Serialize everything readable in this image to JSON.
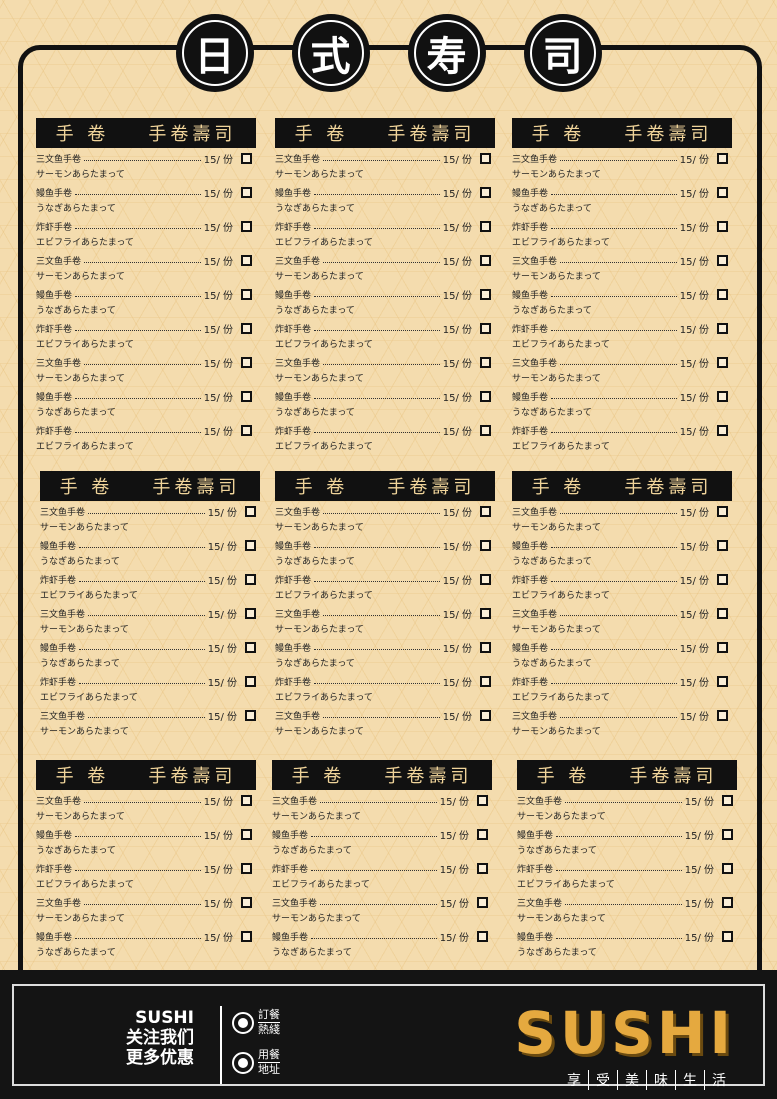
{
  "title_chars": [
    "日",
    "式",
    "寿",
    "司"
  ],
  "section_header": {
    "left": "手 卷",
    "right": "手卷壽司"
  },
  "price": "15/ 份",
  "sections": [
    {
      "items": [
        [
          "三文鱼手卷",
          "サーモンあらたまって"
        ],
        [
          "鳗鱼手卷",
          "うなぎあらたまって"
        ],
        [
          "炸虾手卷",
          "エビフライあらたまって"
        ],
        [
          "三文鱼手卷",
          "サーモンあらたまって"
        ],
        [
          "鳗鱼手卷",
          "うなぎあらたまって"
        ],
        [
          "炸虾手卷",
          "エビフライあらたまって"
        ],
        [
          "三文鱼手卷",
          "サーモンあらたまって"
        ],
        [
          "鳗鱼手卷",
          "うなぎあらたまって"
        ],
        [
          "炸虾手卷",
          "エビフライあらたまって"
        ]
      ]
    },
    {
      "items": [
        [
          "三文鱼手卷",
          "サーモンあらたまって"
        ],
        [
          "鳗鱼手卷",
          "うなぎあらたまって"
        ],
        [
          "炸虾手卷",
          "エビフライあらたまって"
        ],
        [
          "三文鱼手卷",
          "サーモンあらたまって"
        ],
        [
          "鳗鱼手卷",
          "うなぎあらたまって"
        ],
        [
          "炸虾手卷",
          "エビフライあらたまって"
        ],
        [
          "三文鱼手卷",
          "サーモンあらたまって"
        ],
        [
          "鳗鱼手卷",
          "うなぎあらたまって"
        ],
        [
          "炸虾手卷",
          "エビフライあらたまって"
        ]
      ]
    },
    {
      "items": [
        [
          "三文鱼手卷",
          "サーモンあらたまって"
        ],
        [
          "鳗鱼手卷",
          "うなぎあらたまって"
        ],
        [
          "炸虾手卷",
          "エビフライあらたまって"
        ],
        [
          "三文鱼手卷",
          "サーモンあらたまって"
        ],
        [
          "鳗鱼手卷",
          "うなぎあらたまって"
        ],
        [
          "炸虾手卷",
          "エビフライあらたまって"
        ],
        [
          "三文鱼手卷",
          "サーモンあらたまって"
        ],
        [
          "鳗鱼手卷",
          "うなぎあらたまって"
        ],
        [
          "炸虾手卷",
          "エビフライあらたまって"
        ]
      ]
    },
    {
      "items": [
        [
          "三文鱼手卷",
          "サーモンあらたまって"
        ],
        [
          "鳗鱼手卷",
          "うなぎあらたまって"
        ],
        [
          "炸虾手卷",
          "エビフライあらたまって"
        ],
        [
          "三文鱼手卷",
          "サーモンあらたまって"
        ],
        [
          "鳗鱼手卷",
          "うなぎあらたまって"
        ],
        [
          "炸虾手卷",
          "エビフライあらたまって"
        ],
        [
          "三文鱼手卷",
          "サーモンあらたまって"
        ]
      ]
    },
    {
      "items": [
        [
          "三文鱼手卷",
          "サーモンあらたまって"
        ],
        [
          "鳗鱼手卷",
          "うなぎあらたまって"
        ],
        [
          "炸虾手卷",
          "エビフライあらたまって"
        ],
        [
          "三文鱼手卷",
          "サーモンあらたまって"
        ],
        [
          "鳗鱼手卷",
          "うなぎあらたまって"
        ],
        [
          "炸虾手卷",
          "エビフライあらたまって"
        ],
        [
          "三文鱼手卷",
          "サーモンあらたまって"
        ]
      ]
    },
    {
      "items": [
        [
          "三文鱼手卷",
          "サーモンあらたまって"
        ],
        [
          "鳗鱼手卷",
          "うなぎあらたまって"
        ],
        [
          "炸虾手卷",
          "エビフライあらたまって"
        ],
        [
          "三文鱼手卷",
          "サーモンあらたまって"
        ],
        [
          "鳗鱼手卷",
          "うなぎあらたまって"
        ],
        [
          "炸虾手卷",
          "エビフライあらたまって"
        ],
        [
          "三文鱼手卷",
          "サーモンあらたまって"
        ]
      ]
    },
    {
      "items": [
        [
          "三文鱼手卷",
          "サーモンあらたまって"
        ],
        [
          "鳗鱼手卷",
          "うなぎあらたまって"
        ],
        [
          "炸虾手卷",
          "エビフライあらたまって"
        ],
        [
          "三文鱼手卷",
          "サーモンあらたまって"
        ],
        [
          "鳗鱼手卷",
          "うなぎあらたまって"
        ]
      ]
    },
    {
      "items": [
        [
          "三文鱼手卷",
          "サーモンあらたまって"
        ],
        [
          "鳗鱼手卷",
          "うなぎあらたまって"
        ],
        [
          "炸虾手卷",
          "エビフライあらたまって"
        ],
        [
          "三文鱼手卷",
          "サーモンあらたまって"
        ],
        [
          "鳗鱼手卷",
          "うなぎあらたまって"
        ]
      ]
    },
    {
      "items": [
        [
          "三文鱼手卷",
          "サーモンあらたまって"
        ],
        [
          "鳗鱼手卷",
          "うなぎあらたまって"
        ],
        [
          "炸虾手卷",
          "エビフライあらたまって"
        ],
        [
          "三文鱼手卷",
          "サーモンあらたまって"
        ],
        [
          "鳗鱼手卷",
          "うなぎあらたまって"
        ]
      ]
    }
  ],
  "footer": {
    "brand": "SUSHI",
    "follow1": "关注我们",
    "follow2": "更多优惠",
    "contact1": [
      "訂餐",
      "熱綫"
    ],
    "contact2": [
      "用餐",
      "地址"
    ],
    "logo": "SUSHI",
    "tagline": [
      "享",
      "受",
      "美",
      "味",
      "生",
      "活"
    ]
  },
  "colors": {
    "background": "#f4dcae",
    "dark": "#111111",
    "gold": "#e5a93f"
  }
}
